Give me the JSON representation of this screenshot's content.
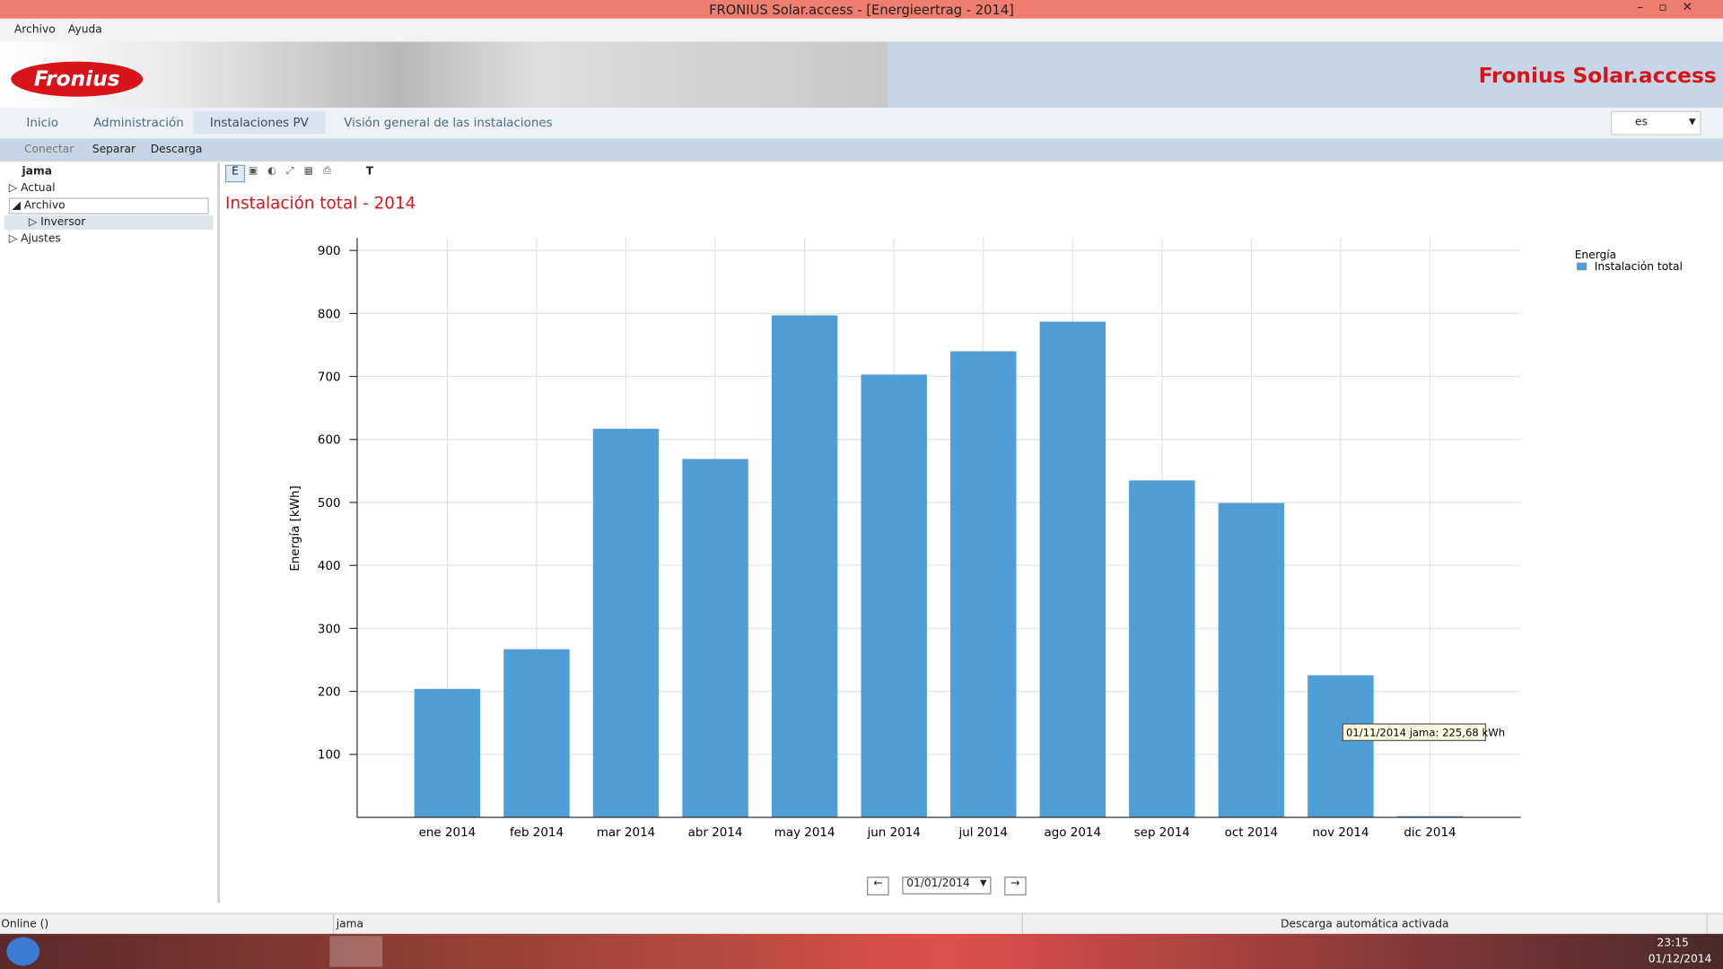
{
  "window": {
    "title": "FRONIUS Solar.access - [Energieertrag - 2014]",
    "menu": [
      "Archivo",
      "Ayuda"
    ],
    "brand": "Fronius",
    "product": "Fronius Solar.access",
    "tabs": [
      "Inicio",
      "Administración",
      "Instalaciones PV",
      "Visión general de las instalaciones"
    ],
    "language": "es",
    "toolbar": [
      "Conectar",
      "Separar",
      "Descarga"
    ],
    "tree": {
      "root": "jama",
      "items": [
        "Actual",
        "Archivo",
        "Inversor",
        "Ajustes"
      ]
    },
    "chart_tools": [
      "E",
      "T"
    ],
    "date": "01/01/2014",
    "status": [
      "Online ()",
      "jama",
      "Descarga automática activada"
    ],
    "clock": {
      "time": "23:15",
      "date": "01/12/2014"
    }
  },
  "chart_data": {
    "type": "bar",
    "title": "Instalación total - 2014",
    "y_label": "Energía [kWh]",
    "legend_title": "Energía",
    "categories": [
      "ene 2014",
      "feb 2014",
      "mar 2014",
      "abr 2014",
      "may 2014",
      "jun 2014",
      "jul 2014",
      "ago 2014",
      "sep 2014",
      "oct 2014",
      "nov 2014",
      "dic 2014"
    ],
    "series": [
      {
        "name": "Instalación total",
        "color": "#4f9fd6",
        "values": [
          204,
          267,
          617,
          569,
          797,
          703,
          740,
          787,
          535,
          499,
          225.68,
          2
        ]
      }
    ],
    "ylim": [
      0,
      920
    ],
    "yticks": [
      100,
      200,
      300,
      400,
      500,
      600,
      700,
      800,
      900
    ],
    "grid": true,
    "tooltip": "01/11/2014 jama: 225,68 kWh"
  }
}
